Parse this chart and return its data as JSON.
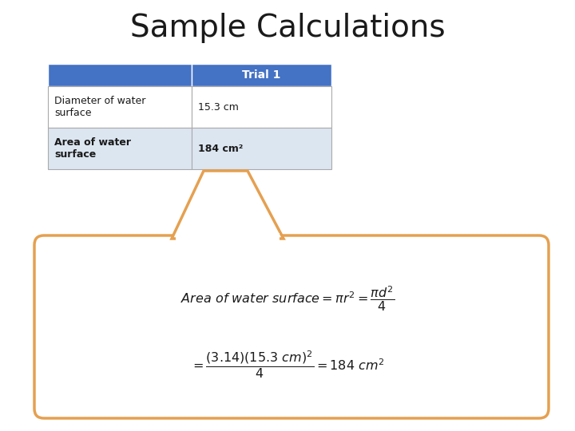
{
  "title": "Sample Calculations",
  "title_fontsize": 28,
  "title_color": "#1a1a1a",
  "table_header": "Trial 1",
  "table_header_bg": "#4472C4",
  "table_header_text_color": "#ffffff",
  "table_row1_label": "Diameter of water\nsurface",
  "table_row1_value": "15.3 cm",
  "table_row2_label": "Area of water\nsurface",
  "table_row2_value": "184 cm²",
  "table_row1_bg": "#ffffff",
  "table_alt_bg": "#dce6f1",
  "bubble_border_color": "#E5A050",
  "bubble_bg_color": "#ffffff",
  "formula_color": "#1a1a1a"
}
